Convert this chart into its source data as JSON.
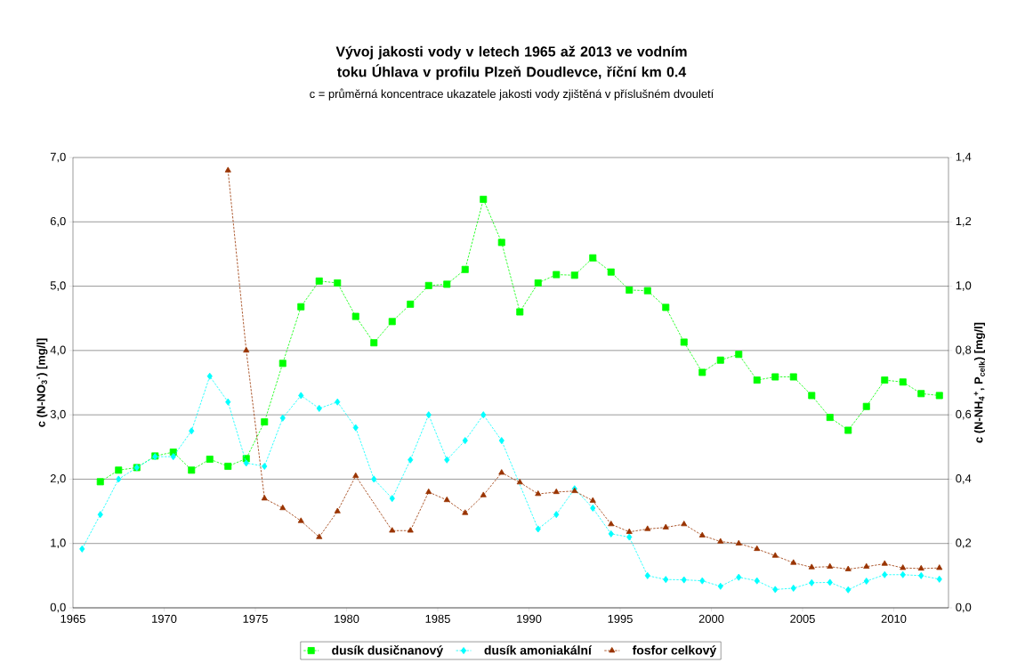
{
  "chart_data": {
    "type": "line",
    "title": "Vývoj jakosti vody v letech 1965 až 2013 ve vodním toku Úhlava v profilu Plzeň Doudlevce, říční km 0.4",
    "subtitle": "c = průměrná koncentrace ukazatele jakosti vody zjištěná v příslušném dvouletí",
    "ylabel": "c (N-NO$_{3}$$^{-}$) [mg/l]",
    "y2label": "c (N-NH$_{4}$$^{+}$, P$_{celk}$) [mg/l]",
    "x": [
      1965.5,
      1966.5,
      1967.5,
      1968.5,
      1969.5,
      1970.5,
      1971.5,
      1972.5,
      1973.5,
      1974.5,
      1975.5,
      1976.5,
      1977.5,
      1978.5,
      1979.5,
      1980.5,
      1981.5,
      1982.5,
      1983.5,
      1984.5,
      1985.5,
      1986.5,
      1987.5,
      1988.5,
      1989.5,
      1990.5,
      1991.5,
      1992.5,
      1993.5,
      1994.5,
      1995.5,
      1996.5,
      1997.5,
      1998.5,
      1999.5,
      2000.5,
      2001.5,
      2002.5,
      2003.5,
      2004.5,
      2005.5,
      2006.5,
      2007.5,
      2008.5,
      2009.5,
      2010.5,
      2011.5,
      2012.5
    ],
    "series": [
      {
        "name": "dusík dusičnanový",
        "color": "#00ff00",
        "marker": "square",
        "values": [
          null,
          1.96,
          2.14,
          2.18,
          2.36,
          2.42,
          2.14,
          2.31,
          2.2,
          2.32,
          2.89,
          3.8,
          4.68,
          5.08,
          5.05,
          4.53,
          4.12,
          4.45,
          4.72,
          5.01,
          5.03,
          5.26,
          6.35,
          5.68,
          4.6,
          5.05,
          5.18,
          5.17,
          5.44,
          5.22,
          4.94,
          4.93,
          4.67,
          4.13,
          3.66,
          3.85,
          3.94,
          3.54,
          3.59,
          3.59,
          3.3,
          2.96,
          2.76,
          3.13,
          3.54,
          3.51,
          3.33,
          3.3
        ]
      },
      {
        "name": "dusík amoniakální",
        "color": "#00ffff",
        "marker": "diamond",
        "axis": "y2",
        "values": [
          0.183,
          0.29,
          0.4,
          0.436,
          0.47,
          0.47,
          0.55,
          0.72,
          0.64,
          0.45,
          0.44,
          0.59,
          0.66,
          0.62,
          0.64,
          0.56,
          0.4,
          0.34,
          0.46,
          0.6,
          0.46,
          0.52,
          0.6,
          0.52,
          null,
          0.245,
          0.29,
          0.37,
          0.31,
          0.23,
          0.22,
          0.1,
          0.088,
          0.087,
          0.084,
          0.067,
          0.095,
          0.084,
          0.057,
          0.061,
          0.078,
          0.079,
          0.056,
          0.083,
          0.103,
          0.103,
          0.1,
          0.089
        ]
      },
      {
        "name": "fosfor celkový",
        "color": "#993300",
        "marker": "triangle",
        "axis": "y2",
        "values": [
          null,
          null,
          null,
          null,
          null,
          null,
          null,
          null,
          1.36,
          0.8,
          0.34,
          0.31,
          0.27,
          0.22,
          0.3,
          0.41,
          null,
          0.24,
          0.24,
          0.36,
          0.335,
          0.295,
          0.35,
          0.42,
          0.39,
          0.354,
          0.36,
          0.363,
          0.333,
          0.26,
          0.236,
          0.245,
          0.25,
          0.26,
          0.225,
          0.206,
          0.2,
          0.183,
          0.162,
          0.14,
          0.126,
          0.128,
          0.12,
          0.128,
          0.137,
          0.124,
          0.122,
          0.124
        ]
      }
    ],
    "xlim": [
      1965,
      2013
    ],
    "xticks": [
      1965,
      1970,
      1975,
      1980,
      1985,
      1990,
      1995,
      2000,
      2005,
      2010
    ],
    "ylim": [
      0,
      7
    ],
    "yticks": [
      {
        "value": 0,
        "label": "0,0"
      },
      {
        "value": 1,
        "label": "1,0"
      },
      {
        "value": 2,
        "label": "2,0"
      },
      {
        "value": 3,
        "label": "3,0"
      },
      {
        "value": 4,
        "label": "4,0"
      },
      {
        "value": 5,
        "label": "5,0"
      },
      {
        "value": 6,
        "label": "6,0"
      },
      {
        "value": 7,
        "label": "7,0"
      }
    ],
    "y2lim": [
      0,
      1.4
    ],
    "y2ticks": [
      {
        "value": 0,
        "label": "0,0"
      },
      {
        "value": 0.2,
        "label": "0,2"
      },
      {
        "value": 0.4,
        "label": "0,4"
      },
      {
        "value": 0.6,
        "label": "0,6"
      },
      {
        "value": 0.8,
        "label": "0,8"
      },
      {
        "value": 1.0,
        "label": "1,0"
      },
      {
        "value": 1.2,
        "label": "1,2"
      },
      {
        "value": 1.4,
        "label": "1,4"
      }
    ],
    "grid": "y",
    "legend": "bottom",
    "line_style": "dashed"
  }
}
